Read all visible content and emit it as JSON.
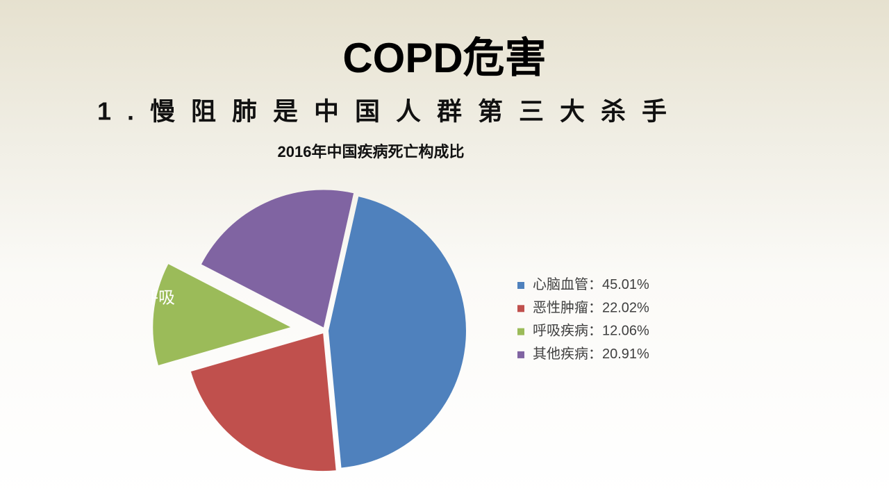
{
  "header": {
    "title": "COPD危害",
    "subtitle": "1.慢阻肺是中国人群第三大杀手"
  },
  "chart_data": {
    "type": "pie",
    "title": "2016年中国疾病死亡构成比",
    "categories": [
      "心脑血管",
      "恶性肿瘤",
      "呼吸疾病",
      "其他疾病"
    ],
    "values": [
      45.01,
      22.02,
      12.06,
      20.91
    ],
    "value_labels": [
      "45.01%",
      "22.02%",
      "12.06%",
      "20.91%"
    ],
    "colors": [
      "#4f81bd",
      "#c0504d",
      "#9bbb59",
      "#8064a2"
    ],
    "legend_separator": "：",
    "slice_label": "呼吸",
    "exploded": [
      false,
      false,
      true,
      false
    ],
    "legend": "right"
  }
}
